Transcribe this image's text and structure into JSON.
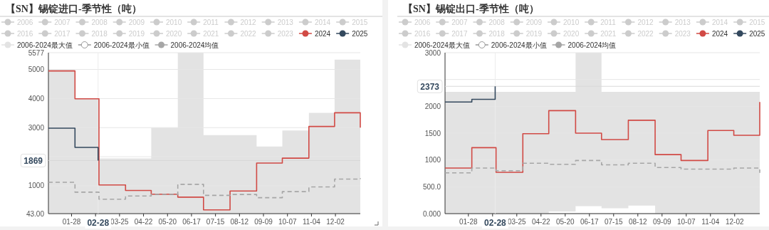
{
  "chart_data": [
    {
      "type": "step",
      "title": "【SN】锡锭进口-季节性（吨）",
      "legend": "top",
      "grid": "y",
      "x": [
        "--01-01",
        "--02-01",
        "--03-01",
        "--04-01",
        "--05-01",
        "--06-01",
        "--07-01",
        "--08-01",
        "--09-01",
        "--10-01",
        "--11-01",
        "--12-01",
        "--12-31"
      ],
      "xlim": [
        "--01-01",
        "--12-31"
      ],
      "xticks": [
        {
          "value": "--01-28",
          "label": "01-28"
        },
        {
          "value": "--02-25",
          "label": null
        },
        {
          "value": "--03-25",
          "label": "03-25"
        },
        {
          "value": "--04-22",
          "label": "04-22"
        },
        {
          "value": "--05-20",
          "label": "05-20"
        },
        {
          "value": "--06-17",
          "label": "06-17"
        },
        {
          "value": "--07-15",
          "label": "07-15"
        },
        {
          "value": "--08-12",
          "label": "08-12"
        },
        {
          "value": "--09-09",
          "label": "09-09"
        },
        {
          "value": "--10-07",
          "label": "10-07"
        },
        {
          "value": "--11-04",
          "label": "11-04"
        },
        {
          "value": "--12-02",
          "label": "12-02"
        }
      ],
      "ylim": [
        43,
        5577
      ],
      "yticks": [
        {
          "value": 43,
          "label": "43.00"
        },
        1000,
        {
          "value": 2000,
          "label": null
        },
        3000,
        4000,
        5000,
        5577
      ],
      "ref_lines": [
        {
          "axis": "y",
          "value": 1869,
          "label": "1869"
        },
        {
          "axis": "x",
          "value": "--02-28",
          "label": "02-28"
        }
      ],
      "series": [
        {
          "name": "2006",
          "color": "#cccccc",
          "values": [
            null,
            null,
            null,
            null,
            null,
            null,
            null,
            null,
            null,
            null,
            null,
            null,
            null
          ]
        },
        {
          "name": "2007",
          "color": "#cccccc",
          "values": [
            null,
            null,
            null,
            null,
            null,
            null,
            null,
            null,
            null,
            null,
            null,
            null,
            null
          ]
        },
        {
          "name": "2008",
          "color": "#cccccc",
          "values": [
            null,
            null,
            null,
            null,
            null,
            null,
            null,
            null,
            null,
            null,
            null,
            null,
            null
          ]
        },
        {
          "name": "2009",
          "color": "#cccccc",
          "values": [
            null,
            null,
            null,
            null,
            null,
            null,
            null,
            null,
            null,
            null,
            null,
            null,
            null
          ]
        },
        {
          "name": "2010",
          "color": "#cccccc",
          "values": [
            null,
            null,
            null,
            null,
            null,
            null,
            null,
            null,
            null,
            null,
            null,
            null,
            null
          ]
        },
        {
          "name": "2011",
          "color": "#cccccc",
          "values": [
            null,
            null,
            null,
            null,
            null,
            null,
            null,
            null,
            null,
            null,
            null,
            null,
            null
          ]
        },
        {
          "name": "2012",
          "color": "#cccccc",
          "values": [
            null,
            null,
            null,
            null,
            null,
            null,
            null,
            null,
            null,
            null,
            null,
            null,
            null
          ]
        },
        {
          "name": "2013",
          "color": "#cccccc",
          "values": [
            null,
            null,
            null,
            null,
            null,
            null,
            null,
            null,
            null,
            null,
            null,
            null,
            null
          ]
        },
        {
          "name": "2014",
          "color": "#cccccc",
          "values": [
            null,
            null,
            null,
            null,
            null,
            null,
            null,
            null,
            null,
            null,
            null,
            null,
            null
          ]
        },
        {
          "name": "2015",
          "color": "#cccccc",
          "values": [
            null,
            null,
            null,
            null,
            null,
            null,
            null,
            null,
            null,
            null,
            null,
            null,
            null
          ]
        },
        {
          "name": "2016",
          "color": "#cccccc",
          "values": [
            null,
            null,
            null,
            null,
            null,
            null,
            null,
            null,
            null,
            null,
            null,
            null,
            null
          ]
        },
        {
          "name": "2017",
          "color": "#cccccc",
          "values": [
            null,
            null,
            null,
            null,
            null,
            null,
            null,
            null,
            null,
            null,
            null,
            null,
            null
          ]
        },
        {
          "name": "2018",
          "color": "#cccccc",
          "values": [
            null,
            null,
            null,
            null,
            null,
            null,
            null,
            null,
            null,
            null,
            null,
            null,
            null
          ]
        },
        {
          "name": "2019",
          "color": "#cccccc",
          "values": [
            null,
            null,
            null,
            null,
            null,
            null,
            null,
            null,
            null,
            null,
            null,
            null,
            null
          ]
        },
        {
          "name": "2020",
          "color": "#cccccc",
          "values": [
            null,
            null,
            null,
            null,
            null,
            null,
            null,
            null,
            null,
            null,
            null,
            null,
            null
          ]
        },
        {
          "name": "2021",
          "color": "#cccccc",
          "values": [
            null,
            null,
            null,
            null,
            null,
            null,
            null,
            null,
            null,
            null,
            null,
            null,
            null
          ]
        },
        {
          "name": "2022",
          "color": "#cccccc",
          "values": [
            null,
            null,
            null,
            null,
            null,
            null,
            null,
            null,
            null,
            null,
            null,
            null,
            null
          ]
        },
        {
          "name": "2023",
          "color": "#cccccc",
          "values": [
            null,
            null,
            null,
            null,
            null,
            null,
            null,
            null,
            null,
            null,
            null,
            null,
            null
          ]
        },
        {
          "name": "2024",
          "color": "#d14a45",
          "values": [
            4950,
            3990,
            1030,
            840,
            710,
            610,
            170,
            820,
            1780,
            1950,
            3040,
            3510,
            3000
          ]
        },
        {
          "name": "2025",
          "color": "#34495e",
          "x": [
            "--01-01",
            "--02-01",
            "--02-28"
          ],
          "values": [
            2980,
            2320,
            1869
          ]
        },
        {
          "name": "2006-2024最大值",
          "type": "area",
          "color": "#e3e3e3",
          "values": [
            4990,
            3990,
            1940,
            1940,
            3000,
            5577,
            2740,
            2740,
            2350,
            2900,
            3510,
            5340,
            5340
          ]
        },
        {
          "name": "2006-2024最小值",
          "type": "area",
          "color": "#ffffff",
          "values": [
            null,
            null,
            null,
            null,
            null,
            null,
            null,
            null,
            null,
            null,
            null,
            null,
            null
          ]
        },
        {
          "name": "2006-2024均值",
          "color": "#a6a6a6",
          "line_style": "dashed",
          "values": [
            1120,
            780,
            540,
            650,
            700,
            1050,
            670,
            700,
            590,
            800,
            960,
            1230,
            1260
          ]
        }
      ]
    },
    {
      "type": "step",
      "title": "【SN】锡锭出口-季节性（吨）",
      "legend": "top",
      "grid": "y",
      "x": [
        "--01-01",
        "--02-01",
        "--03-01",
        "--04-01",
        "--05-01",
        "--06-01",
        "--07-01",
        "--08-01",
        "--09-01",
        "--10-01",
        "--11-01",
        "--12-01",
        "--12-31"
      ],
      "xlim": [
        "--01-01",
        "--12-31"
      ],
      "xticks": [
        {
          "value": "--01-28",
          "label": "01-28"
        },
        {
          "value": "--02-25",
          "label": null
        },
        {
          "value": "--03-25",
          "label": "03-25"
        },
        {
          "value": "--04-22",
          "label": "04-22"
        },
        {
          "value": "--05-20",
          "label": "05-20"
        },
        {
          "value": "--06-17",
          "label": "06-17"
        },
        {
          "value": "--07-15",
          "label": "07-15"
        },
        {
          "value": "--08-12",
          "label": "08-12"
        },
        {
          "value": "--09-09",
          "label": "09-09"
        },
        {
          "value": "--10-07",
          "label": "10-07"
        },
        {
          "value": "--11-04",
          "label": "11-04"
        },
        {
          "value": "--12-02",
          "label": "12-02"
        }
      ],
      "ylim": [
        0,
        3000
      ],
      "yticks": [
        {
          "value": 0,
          "label": "0.000"
        },
        {
          "value": 500,
          "label": "500.0"
        },
        1000,
        1500,
        2000,
        {
          "value": 2500,
          "label": null
        },
        3000
      ],
      "ref_lines": [
        {
          "axis": "y",
          "value": 2373,
          "label": "2373"
        },
        {
          "axis": "x",
          "value": "--02-28",
          "label": "02-28"
        }
      ],
      "series": [
        {
          "name": "2006",
          "color": "#cccccc",
          "values": [
            null,
            null,
            null,
            null,
            null,
            null,
            null,
            null,
            null,
            null,
            null,
            null,
            null
          ]
        },
        {
          "name": "2007",
          "color": "#cccccc",
          "values": [
            null,
            null,
            null,
            null,
            null,
            null,
            null,
            null,
            null,
            null,
            null,
            null,
            null
          ]
        },
        {
          "name": "2008",
          "color": "#cccccc",
          "values": [
            null,
            null,
            null,
            null,
            null,
            null,
            null,
            null,
            null,
            null,
            null,
            null,
            null
          ]
        },
        {
          "name": "2009",
          "color": "#cccccc",
          "values": [
            null,
            null,
            null,
            null,
            null,
            null,
            null,
            null,
            null,
            null,
            null,
            null,
            null
          ]
        },
        {
          "name": "2010",
          "color": "#cccccc",
          "values": [
            null,
            null,
            null,
            null,
            null,
            null,
            null,
            null,
            null,
            null,
            null,
            null,
            null
          ]
        },
        {
          "name": "2011",
          "color": "#cccccc",
          "values": [
            null,
            null,
            null,
            null,
            null,
            null,
            null,
            null,
            null,
            null,
            null,
            null,
            null
          ]
        },
        {
          "name": "2012",
          "color": "#cccccc",
          "values": [
            null,
            null,
            null,
            null,
            null,
            null,
            null,
            null,
            null,
            null,
            null,
            null,
            null
          ]
        },
        {
          "name": "2013",
          "color": "#cccccc",
          "values": [
            null,
            null,
            null,
            null,
            null,
            null,
            null,
            null,
            null,
            null,
            null,
            null,
            null
          ]
        },
        {
          "name": "2014",
          "color": "#cccccc",
          "values": [
            null,
            null,
            null,
            null,
            null,
            null,
            null,
            null,
            null,
            null,
            null,
            null,
            null
          ]
        },
        {
          "name": "2015",
          "color": "#cccccc",
          "values": [
            null,
            null,
            null,
            null,
            null,
            null,
            null,
            null,
            null,
            null,
            null,
            null,
            null
          ]
        },
        {
          "name": "2016",
          "color": "#cccccc",
          "values": [
            null,
            null,
            null,
            null,
            null,
            null,
            null,
            null,
            null,
            null,
            null,
            null,
            null
          ]
        },
        {
          "name": "2017",
          "color": "#cccccc",
          "values": [
            null,
            null,
            null,
            null,
            null,
            null,
            null,
            null,
            null,
            null,
            null,
            null,
            null
          ]
        },
        {
          "name": "2018",
          "color": "#cccccc",
          "values": [
            null,
            null,
            null,
            null,
            null,
            null,
            null,
            null,
            null,
            null,
            null,
            null,
            null
          ]
        },
        {
          "name": "2019",
          "color": "#cccccc",
          "values": [
            null,
            null,
            null,
            null,
            null,
            null,
            null,
            null,
            null,
            null,
            null,
            null,
            null
          ]
        },
        {
          "name": "2020",
          "color": "#cccccc",
          "values": [
            null,
            null,
            null,
            null,
            null,
            null,
            null,
            null,
            null,
            null,
            null,
            null,
            null
          ]
        },
        {
          "name": "2021",
          "color": "#cccccc",
          "values": [
            null,
            null,
            null,
            null,
            null,
            null,
            null,
            null,
            null,
            null,
            null,
            null,
            null
          ]
        },
        {
          "name": "2022",
          "color": "#cccccc",
          "values": [
            null,
            null,
            null,
            null,
            null,
            null,
            null,
            null,
            null,
            null,
            null,
            null,
            null
          ]
        },
        {
          "name": "2023",
          "color": "#cccccc",
          "values": [
            null,
            null,
            null,
            null,
            null,
            null,
            null,
            null,
            null,
            null,
            null,
            null,
            null
          ]
        },
        {
          "name": "2024",
          "color": "#d14a45",
          "values": [
            850,
            1230,
            770,
            1490,
            1920,
            1500,
            1380,
            1740,
            1100,
            990,
            1550,
            1460,
            2080
          ]
        },
        {
          "name": "2025",
          "color": "#34495e",
          "x": [
            "--01-01",
            "--02-01",
            "--02-28"
          ],
          "values": [
            2080,
            2130,
            2373
          ]
        },
        {
          "name": "2006-2024最大值",
          "type": "area",
          "color": "#e3e3e3",
          "values": [
            2270,
            2270,
            2270,
            2270,
            2270,
            3000,
            2270,
            2270,
            2270,
            2270,
            2270,
            2270,
            2270
          ]
        },
        {
          "name": "2006-2024最小值",
          "type": "area",
          "color": "#ffffff",
          "values": [
            0,
            0,
            0,
            0,
            40,
            140,
            100,
            150,
            0,
            0,
            0,
            0,
            0
          ]
        },
        {
          "name": "2006-2024均值",
          "color": "#a6a6a6",
          "line_style": "dashed",
          "values": [
            760,
            850,
            800,
            940,
            920,
            990,
            910,
            940,
            860,
            830,
            830,
            850,
            760
          ]
        }
      ]
    }
  ]
}
